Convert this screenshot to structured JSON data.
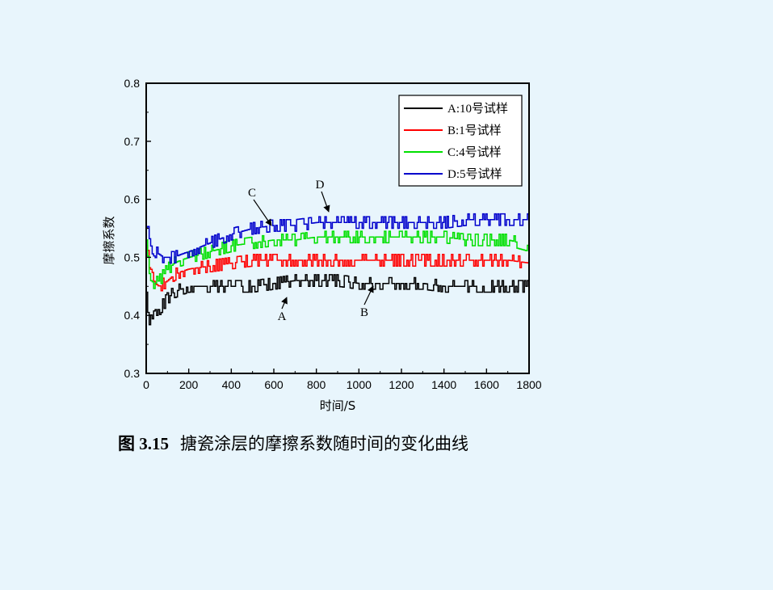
{
  "chart_data": {
    "type": "line",
    "title": "",
    "xlabel": "时间/S",
    "ylabel": "摩擦系数",
    "xlim": [
      0,
      1800
    ],
    "ylim": [
      0.3,
      0.8
    ],
    "xticks": [
      0,
      200,
      400,
      600,
      800,
      1000,
      1200,
      1400,
      1600,
      1800
    ],
    "yticks": [
      0.3,
      0.4,
      0.5,
      0.6,
      0.7,
      0.8
    ],
    "grid": false,
    "legend_position": "top-right",
    "series": [
      {
        "name": "A:10号试样",
        "color": "#000000",
        "x": [
          0,
          10,
          20,
          40,
          60,
          80,
          100,
          130,
          160,
          200,
          300,
          400,
          500,
          600,
          700,
          800,
          900,
          1000,
          1100,
          1200,
          1300,
          1400,
          1500,
          1600,
          1700,
          1800
        ],
        "y": [
          0.44,
          0.39,
          0.4,
          0.41,
          0.41,
          0.42,
          0.43,
          0.44,
          0.445,
          0.45,
          0.45,
          0.45,
          0.45,
          0.455,
          0.46,
          0.46,
          0.46,
          0.455,
          0.455,
          0.455,
          0.455,
          0.45,
          0.45,
          0.45,
          0.45,
          0.45
        ]
      },
      {
        "name": "B:1号试样",
        "color": "#ff0000",
        "x": [
          0,
          10,
          20,
          40,
          60,
          80,
          100,
          130,
          160,
          200,
          300,
          400,
          500,
          600,
          700,
          800,
          900,
          1000,
          1100,
          1200,
          1300,
          1400,
          1500,
          1600,
          1700,
          1800
        ],
        "y": [
          0.53,
          0.49,
          0.47,
          0.455,
          0.45,
          0.455,
          0.46,
          0.47,
          0.475,
          0.48,
          0.485,
          0.49,
          0.495,
          0.495,
          0.495,
          0.495,
          0.495,
          0.495,
          0.495,
          0.495,
          0.495,
          0.495,
          0.495,
          0.495,
          0.495,
          0.49
        ]
      },
      {
        "name": "C:4号试样",
        "color": "#00e000",
        "x": [
          0,
          10,
          20,
          40,
          60,
          80,
          100,
          130,
          160,
          200,
          300,
          400,
          500,
          600,
          700,
          800,
          900,
          1000,
          1100,
          1200,
          1300,
          1400,
          1500,
          1600,
          1700,
          1800
        ],
        "y": [
          0.52,
          0.48,
          0.46,
          0.455,
          0.46,
          0.47,
          0.48,
          0.49,
          0.495,
          0.5,
          0.51,
          0.52,
          0.525,
          0.53,
          0.53,
          0.535,
          0.535,
          0.535,
          0.535,
          0.535,
          0.535,
          0.535,
          0.53,
          0.53,
          0.53,
          0.52
        ]
      },
      {
        "name": "D:5号试样",
        "color": "#0000cc",
        "x": [
          0,
          10,
          20,
          40,
          60,
          80,
          100,
          130,
          160,
          200,
          300,
          400,
          500,
          600,
          700,
          800,
          900,
          1000,
          1100,
          1200,
          1300,
          1400,
          1500,
          1600,
          1700,
          1800
        ],
        "y": [
          0.55,
          0.54,
          0.52,
          0.51,
          0.505,
          0.5,
          0.5,
          0.5,
          0.505,
          0.51,
          0.525,
          0.54,
          0.55,
          0.555,
          0.555,
          0.56,
          0.56,
          0.56,
          0.56,
          0.56,
          0.56,
          0.56,
          0.565,
          0.565,
          0.565,
          0.565
        ]
      }
    ],
    "annotations": [
      {
        "label": "A",
        "x": 630,
        "y": 0.454
      },
      {
        "label": "B",
        "x": 1040,
        "y": 0.468
      },
      {
        "label": "C",
        "x": 585,
        "y": 0.528
      },
      {
        "label": "D",
        "x": 860,
        "y": 0.556
      }
    ]
  },
  "caption": {
    "number": "图 3.15",
    "text": "搪瓷涂层的摩擦系数随时间的变化曲线"
  }
}
